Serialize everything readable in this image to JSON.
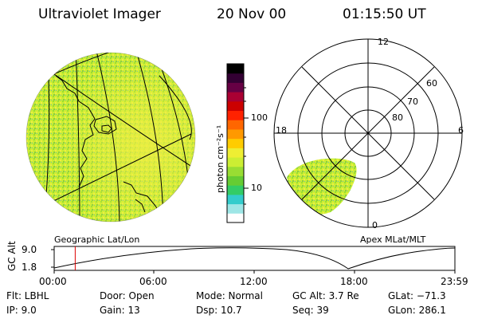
{
  "header": {
    "instrument": "Ultraviolet Imager",
    "date": "20 Nov 00",
    "time": "01:15:50 UT"
  },
  "geo_panel": {
    "label": "Geographic Lat/Lon"
  },
  "polar_panel": {
    "label": "Apex MLat/MLT",
    "mlt_labels": [
      "12",
      "18",
      "6",
      "0"
    ],
    "lat_labels": [
      "60",
      "70",
      "80"
    ]
  },
  "colorbar": {
    "unit_label": "photon cm⁻²s⁻¹",
    "ticks": [
      "100",
      "10"
    ],
    "scale": "log",
    "colors": [
      "#ffffff",
      "#9ee6e6",
      "#33cccc",
      "#33cc66",
      "#66cc33",
      "#99dd33",
      "#ccee33",
      "#eeee33",
      "#ffcc00",
      "#ff9900",
      "#ff6600",
      "#ff2200",
      "#cc0000",
      "#aa0033",
      "#660044",
      "#330033",
      "#000000"
    ]
  },
  "altitude_plot": {
    "ylabel": "GC Alt",
    "yticks": [
      "9.0",
      "1.8"
    ],
    "xticks": [
      "00:00",
      "06:00",
      "12:00",
      "18:00",
      "23:59"
    ],
    "current_time_hours": 1.26
  },
  "footer": {
    "flt": "Flt: LBHL",
    "ip": "IP:  9.0",
    "door": "Door: Open",
    "gain": "Gain: 13",
    "mode": "Mode: Normal",
    "dsp": "Dsp:    10.7",
    "gc_alt": "GC Alt: 3.7 Re",
    "seq": "Seq: 39",
    "glat": "GLat: −71.3",
    "glon": "GLon: 286.1"
  }
}
